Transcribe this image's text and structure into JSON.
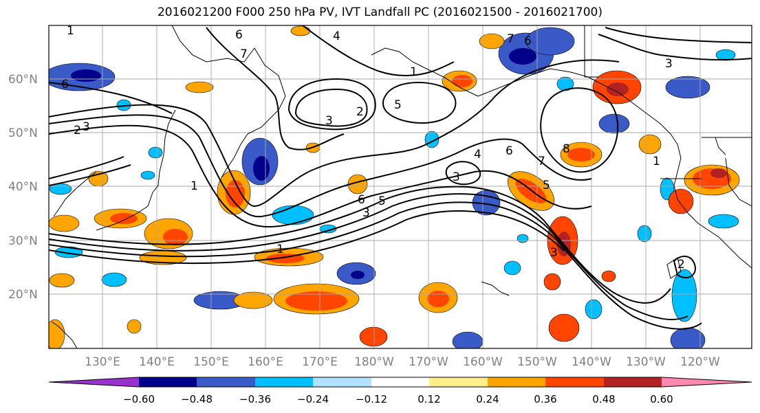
{
  "title": "2016021200 F000 250 hPa PV, IVT Landfall PC (2016021500 - 2016021700)",
  "lat_ticks": [
    "60°N",
    "50°N",
    "40°N",
    "30°N",
    "20°N"
  ],
  "lon_ticks": [
    "130°E",
    "140°E",
    "150°E",
    "160°E",
    "170°E",
    "180°W",
    "170°W",
    "160°W",
    "150°W",
    "140°W",
    "130°W",
    "120°W"
  ],
  "colorbar": {
    "tick_labels": [
      "−0.60",
      "−0.48",
      "−0.36",
      "−0.24",
      "−0.12",
      "0.12",
      "0.24",
      "0.36",
      "0.48",
      "0.60"
    ],
    "colors": [
      "#9932CC",
      "#00008B",
      "#3A5BC7",
      "#00BFFF",
      "#B0E2FF",
      "#FFFFFF",
      "#FFEC8B",
      "#FFA500",
      "#FF4500",
      "#B22222",
      "#FF88B0"
    ]
  },
  "pv_contour_labels": [
    "1",
    "2",
    "3",
    "4",
    "5",
    "6",
    "7",
    "8"
  ]
}
